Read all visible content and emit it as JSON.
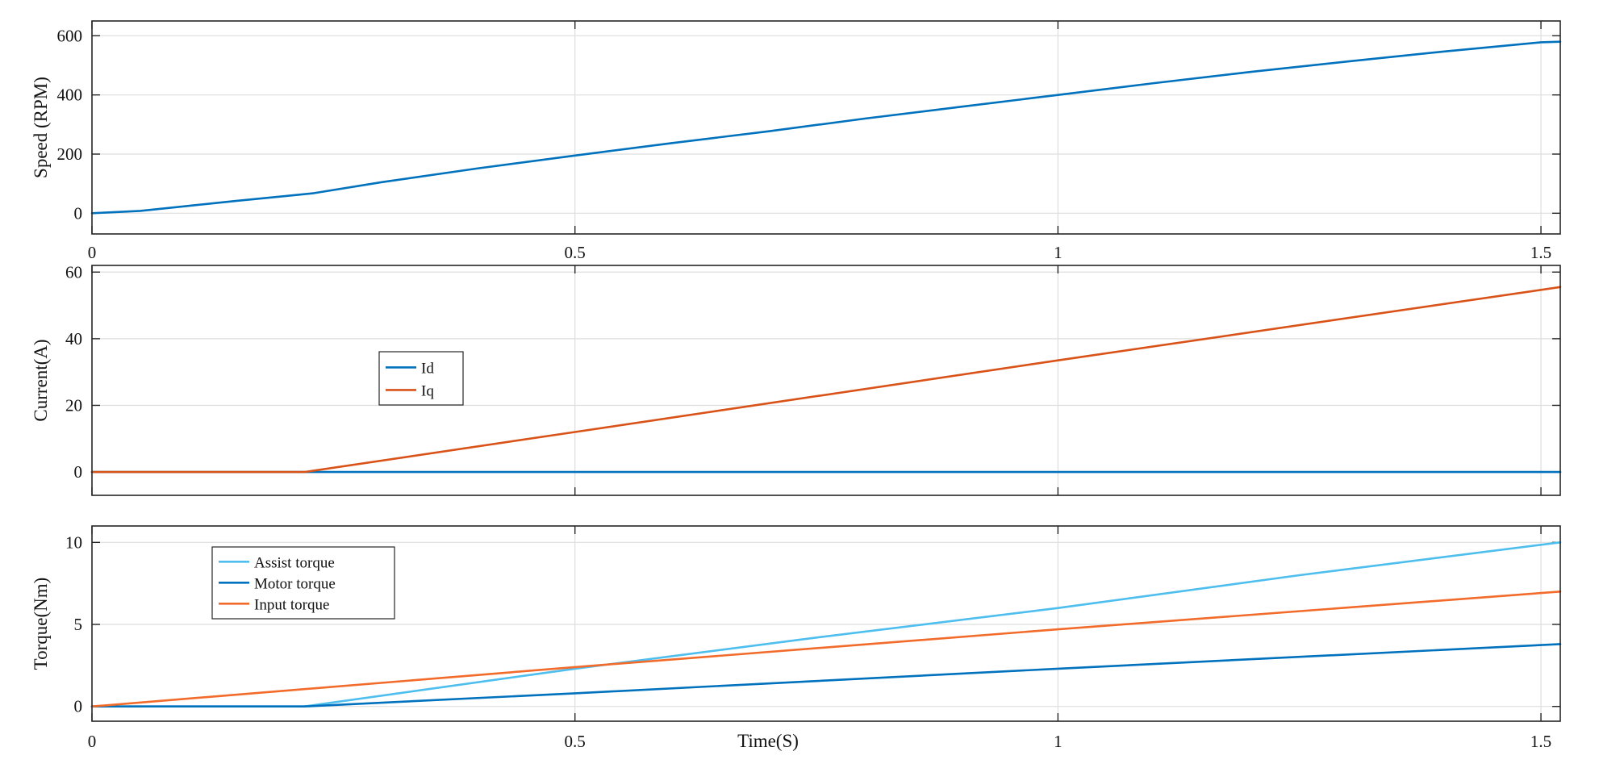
{
  "chart_data": [
    {
      "type": "line",
      "ylabel": "Speed (RPM)",
      "xlabel": "",
      "xlim": [
        0,
        1.52
      ],
      "ylim": [
        -70,
        650
      ],
      "xticks": [
        0,
        0.5,
        1,
        1.5
      ],
      "xtick_labels": [
        "0",
        "0.5",
        "1",
        "1.5"
      ],
      "yticks": [
        0,
        200,
        400,
        600
      ],
      "ytick_labels": [
        "0",
        "200",
        "400",
        "600"
      ],
      "grid": true,
      "legend": null,
      "series": [
        {
          "color": "#0072BD",
          "x": [
            0,
            0.05,
            0.1,
            0.15,
            0.2,
            0.23,
            0.3,
            0.4,
            0.5,
            0.6,
            0.7,
            0.8,
            0.9,
            1.0,
            1.1,
            1.2,
            1.3,
            1.4,
            1.5,
            1.52
          ],
          "y": [
            0,
            8,
            25,
            42,
            58,
            68,
            105,
            152,
            195,
            237,
            277,
            320,
            360,
            400,
            440,
            478,
            513,
            547,
            578,
            580
          ]
        }
      ]
    },
    {
      "type": "line",
      "ylabel": "Current(A)",
      "xlabel": "",
      "xlim": [
        0,
        1.52
      ],
      "ylim": [
        -7,
        62
      ],
      "xticks": [
        0,
        0.5,
        1,
        1.5
      ],
      "xtick_labels": [],
      "yticks": [
        0,
        20,
        40,
        60
      ],
      "ytick_labels": [
        "0",
        "20",
        "40",
        "60"
      ],
      "grid": true,
      "legend": {
        "position": "center-left",
        "entries": [
          "Id",
          "Iq"
        ]
      },
      "series": [
        {
          "name": "Id",
          "color": "#0072BD",
          "x": [
            0,
            1.52
          ],
          "y": [
            0,
            0
          ]
        },
        {
          "name": "Iq",
          "color": "#D95319",
          "x": [
            0,
            0.22,
            0.5,
            1.0,
            1.52
          ],
          "y": [
            0,
            0,
            12,
            33.5,
            55.5
          ]
        }
      ]
    },
    {
      "type": "line",
      "ylabel": "Torque(Nm)",
      "xlabel": "Time(S)",
      "xlim": [
        0,
        1.52
      ],
      "ylim": [
        -0.9,
        11
      ],
      "xticks": [
        0,
        0.5,
        1,
        1.5
      ],
      "xtick_labels": [
        "0",
        "0.5",
        "1",
        "1.5"
      ],
      "yticks": [
        0,
        5,
        10
      ],
      "ytick_labels": [
        "0",
        "5",
        "10"
      ],
      "grid": true,
      "legend": {
        "position": "top-left",
        "entries": [
          "Assist torque",
          "Motor torque",
          "Input torque"
        ]
      },
      "series": [
        {
          "name": "Assist torque",
          "color": "#4DBEEE",
          "x": [
            0,
            0.22,
            0.5,
            0.75,
            1.0,
            1.25,
            1.52
          ],
          "y": [
            0,
            0,
            2.3,
            4.2,
            6.0,
            8.0,
            10.0
          ]
        },
        {
          "name": "Motor torque",
          "color": "#0072BD",
          "x": [
            0,
            0.22,
            0.5,
            1.0,
            1.52
          ],
          "y": [
            0,
            0,
            0.8,
            2.3,
            3.8
          ]
        },
        {
          "name": "Input torque",
          "color": "#F26B2B",
          "x": [
            0,
            0.5,
            1.0,
            1.52
          ],
          "y": [
            0,
            2.4,
            4.7,
            7.0
          ]
        }
      ]
    }
  ]
}
